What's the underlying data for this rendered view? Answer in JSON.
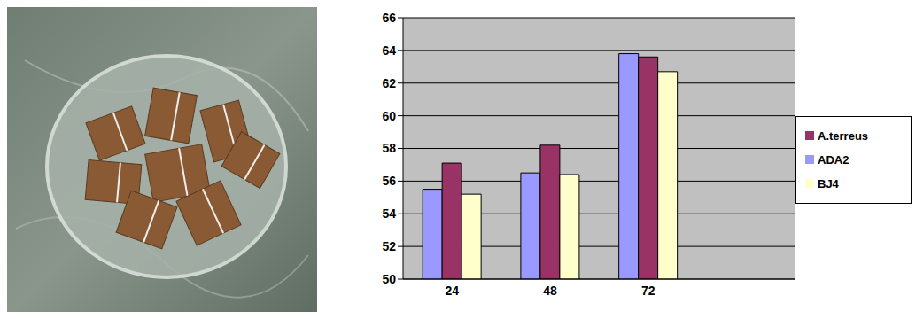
{
  "chart_data": {
    "type": "bar",
    "categories": [
      "24",
      "48",
      "72",
      null
    ],
    "series": [
      {
        "name": "ADA2",
        "color": "#9999ff",
        "values": [
          55.5,
          56.5,
          63.8,
          null
        ]
      },
      {
        "name": "A.terreus",
        "color": "#993366",
        "values": [
          57.1,
          58.2,
          63.6,
          null
        ]
      },
      {
        "name": "BJ4",
        "color": "#ffffcc",
        "values": [
          55.2,
          56.4,
          62.7,
          null
        ]
      }
    ],
    "ylim": [
      50,
      66
    ],
    "yticks": [
      50,
      52,
      54,
      56,
      58,
      60,
      62,
      64,
      66
    ],
    "grid": true,
    "legend": "right"
  }
}
